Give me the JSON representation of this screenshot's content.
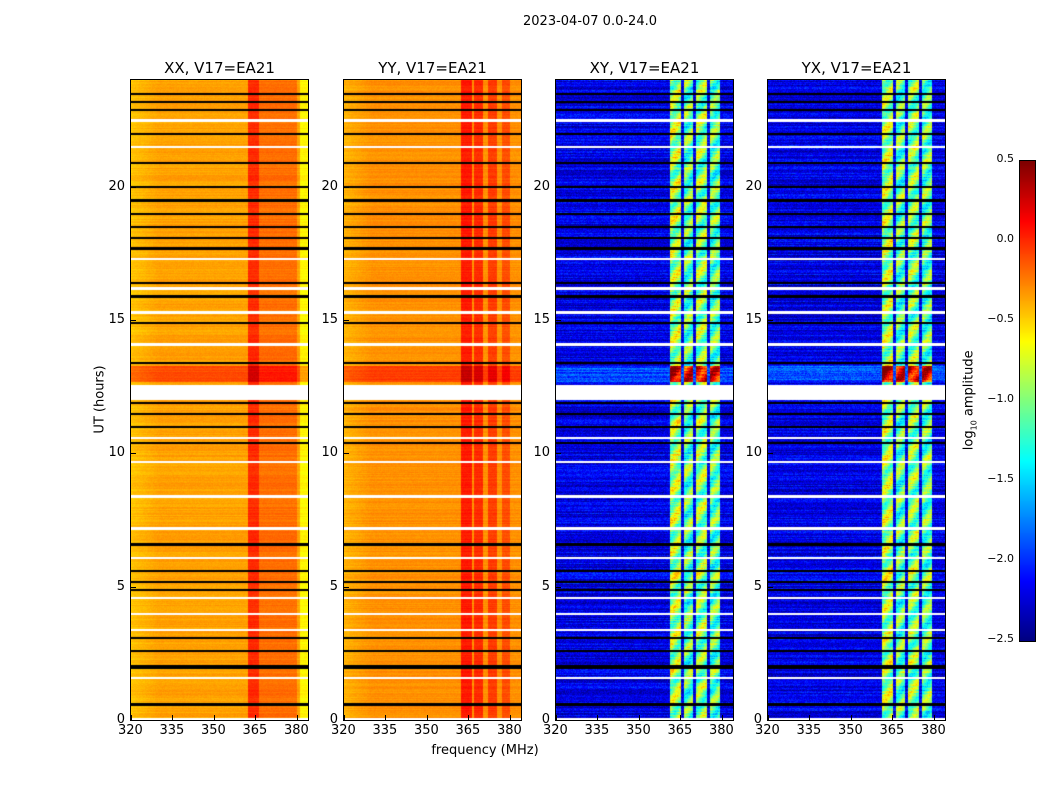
{
  "figure": {
    "suptitle": "2023-04-07 0.0-24.0"
  },
  "chart_data": {
    "type": "heatmap",
    "title": "2023-04-07 0.0-24.0",
    "xlabel": "frequency (MHz)",
    "ylabel": "UT (hours)",
    "xlim": [
      320,
      384
    ],
    "ylim": [
      0,
      24
    ],
    "xticks": [
      "320",
      "335",
      "350",
      "365",
      "380"
    ],
    "yticks": [
      "0",
      "5",
      "10",
      "15",
      "20"
    ],
    "colorbar": {
      "label_prefix": "log",
      "label_sub": "10",
      "label_suffix": " amplitude",
      "clim": [
        -2.5,
        0.5
      ],
      "ticks": [
        "0.5",
        "0.0",
        "−0.5",
        "−1.0",
        "−1.5",
        "−2.0",
        "−2.5"
      ],
      "tick_values": [
        0.5,
        0.0,
        -0.5,
        -1.0,
        -1.5,
        -2.0,
        -2.5
      ],
      "colormap": "jet"
    },
    "panels": [
      {
        "title": "XX, V17=EA21",
        "baseline": -0.35,
        "bands": [
          {
            "from": 362,
            "to": 366,
            "value": 0.0
          },
          {
            "from": 366,
            "to": 380,
            "value": -0.2
          },
          {
            "from": 381,
            "to": 384,
            "value": -0.6
          }
        ]
      },
      {
        "title": "YY, V17=EA21",
        "baseline": -0.3,
        "bands": [
          {
            "from": 362,
            "to": 366,
            "value": 0.05
          },
          {
            "from": 367,
            "to": 370,
            "value": 0.0
          },
          {
            "from": 372,
            "to": 375,
            "value": -0.05
          },
          {
            "from": 377,
            "to": 380,
            "value": -0.1
          }
        ]
      },
      {
        "title": "XY, V17=EA21",
        "baseline": -2.2,
        "bands": [
          {
            "from": 361,
            "to": 365,
            "value": -0.9
          },
          {
            "from": 366,
            "to": 369.5,
            "value": -1.1
          },
          {
            "from": 370.5,
            "to": 374.5,
            "value": -1.0
          },
          {
            "from": 375.5,
            "to": 379,
            "value": -1.1
          }
        ]
      },
      {
        "title": "YX, V17=EA21",
        "baseline": -2.2,
        "bands": [
          {
            "from": 361,
            "to": 365,
            "value": -0.9
          },
          {
            "from": 366,
            "to": 369.5,
            "value": -1.1
          },
          {
            "from": 370.5,
            "to": 374.5,
            "value": -1.0
          },
          {
            "from": 375.5,
            "to": 379,
            "value": -1.1
          }
        ]
      }
    ],
    "flagged_hours_white": [
      22.5,
      21.5,
      17.3,
      16.2,
      15.3,
      14.1,
      12.3,
      10.6,
      9.7,
      8.4,
      7.2,
      6.1,
      4.6,
      4.0,
      3.4,
      1.6,
      0.05
    ],
    "flagged_hours_black": [
      23.5,
      23.2,
      22.9,
      22.0,
      20.9,
      20.0,
      19.5,
      19.0,
      18.5,
      18.1,
      17.7,
      16.4,
      15.9,
      14.9,
      13.4,
      11.9,
      11.5,
      11.0,
      10.4,
      6.6,
      5.6,
      5.2,
      4.9,
      3.1,
      2.6,
      2.0,
      0.6
    ],
    "bright_interval_hours": [
      12.7,
      13.3
    ]
  }
}
